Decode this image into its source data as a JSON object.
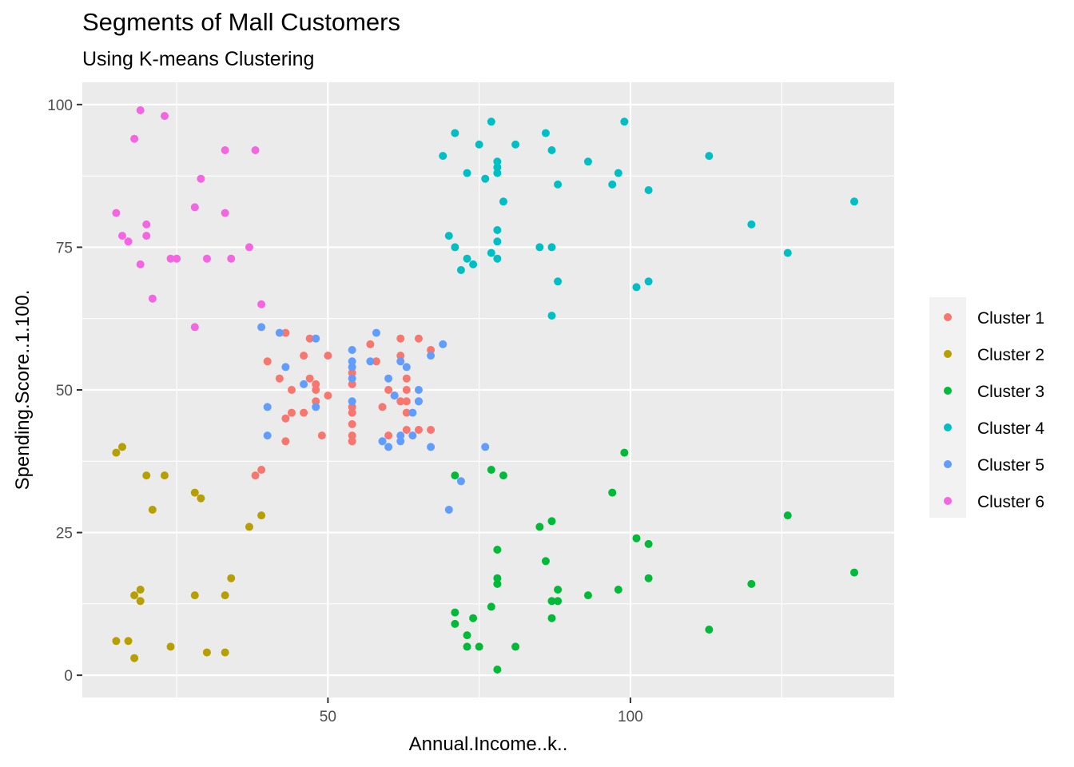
{
  "chart_data": {
    "type": "scatter",
    "title": "Segments of Mall Customers",
    "subtitle": "Using K-means Clustering",
    "xlabel": "Annual.Income..k..",
    "ylabel": "Spending.Score..1.100.",
    "xlim": [
      9.4,
      143.6
    ],
    "ylim": [
      -3.9,
      103.9
    ],
    "x_ticks": [
      50,
      100
    ],
    "y_ticks": [
      0,
      25,
      50,
      75,
      100
    ],
    "grid": true,
    "legend_position": "right",
    "series": [
      {
        "name": "Cluster 1",
        "color": "#F8766D",
        "points": [
          [
            38,
            35
          ],
          [
            39,
            36
          ],
          [
            40,
            55
          ],
          [
            42,
            52
          ],
          [
            43,
            60
          ],
          [
            43,
            45
          ],
          [
            43,
            41
          ],
          [
            44,
            50
          ],
          [
            44,
            46
          ],
          [
            46,
            56
          ],
          [
            46,
            46
          ],
          [
            47,
            59
          ],
          [
            47,
            52
          ],
          [
            48,
            51
          ],
          [
            48,
            50
          ],
          [
            48,
            48
          ],
          [
            49,
            42
          ],
          [
            50,
            56
          ],
          [
            50,
            49
          ],
          [
            54,
            53
          ],
          [
            54,
            51
          ],
          [
            54,
            47
          ],
          [
            54,
            46
          ],
          [
            54,
            44
          ],
          [
            54,
            42
          ],
          [
            54,
            41
          ],
          [
            57,
            58
          ],
          [
            58,
            55
          ],
          [
            59,
            47
          ],
          [
            60,
            50
          ],
          [
            60,
            42
          ],
          [
            61,
            49
          ],
          [
            62,
            59
          ],
          [
            62,
            56
          ],
          [
            62,
            48
          ],
          [
            63,
            52
          ],
          [
            63,
            50
          ],
          [
            63,
            48
          ],
          [
            63,
            46
          ],
          [
            63,
            43
          ],
          [
            65,
            59
          ],
          [
            65,
            48
          ],
          [
            65,
            43
          ],
          [
            67,
            57
          ],
          [
            67,
            43
          ]
        ]
      },
      {
        "name": "Cluster 2",
        "color": "#B79F00",
        "points": [
          [
            15,
            39
          ],
          [
            15,
            6
          ],
          [
            16,
            40
          ],
          [
            17,
            6
          ],
          [
            18,
            3
          ],
          [
            18,
            14
          ],
          [
            19,
            15
          ],
          [
            19,
            13
          ],
          [
            20,
            35
          ],
          [
            21,
            29
          ],
          [
            23,
            35
          ],
          [
            24,
            5
          ],
          [
            28,
            14
          ],
          [
            28,
            32
          ],
          [
            29,
            31
          ],
          [
            30,
            4
          ],
          [
            33,
            4
          ],
          [
            33,
            14
          ],
          [
            34,
            17
          ],
          [
            37,
            26
          ],
          [
            39,
            28
          ]
        ]
      },
      {
        "name": "Cluster 3",
        "color": "#00BA38",
        "points": [
          [
            71,
            35
          ],
          [
            71,
            11
          ],
          [
            71,
            9
          ],
          [
            73,
            7
          ],
          [
            73,
            5
          ],
          [
            74,
            10
          ],
          [
            75,
            5
          ],
          [
            77,
            36
          ],
          [
            77,
            12
          ],
          [
            78,
            22
          ],
          [
            78,
            17
          ],
          [
            78,
            16
          ],
          [
            78,
            1
          ],
          [
            79,
            35
          ],
          [
            81,
            5
          ],
          [
            85,
            26
          ],
          [
            86,
            20
          ],
          [
            87,
            27
          ],
          [
            87,
            13
          ],
          [
            87,
            10
          ],
          [
            88,
            15
          ],
          [
            88,
            13
          ],
          [
            93,
            14
          ],
          [
            97,
            32
          ],
          [
            98,
            15
          ],
          [
            99,
            39
          ],
          [
            101,
            24
          ],
          [
            103,
            23
          ],
          [
            103,
            17
          ],
          [
            113,
            8
          ],
          [
            120,
            16
          ],
          [
            126,
            28
          ],
          [
            137,
            18
          ]
        ]
      },
      {
        "name": "Cluster 4",
        "color": "#00BFC4",
        "points": [
          [
            69,
            91
          ],
          [
            70,
            77
          ],
          [
            71,
            95
          ],
          [
            71,
            75
          ],
          [
            72,
            71
          ],
          [
            73,
            88
          ],
          [
            73,
            73
          ],
          [
            74,
            72
          ],
          [
            75,
            93
          ],
          [
            76,
            87
          ],
          [
            77,
            97
          ],
          [
            77,
            74
          ],
          [
            78,
            90
          ],
          [
            78,
            89
          ],
          [
            78,
            88
          ],
          [
            78,
            78
          ],
          [
            78,
            76
          ],
          [
            78,
            73
          ],
          [
            79,
            83
          ],
          [
            81,
            93
          ],
          [
            85,
            75
          ],
          [
            86,
            95
          ],
          [
            87,
            92
          ],
          [
            87,
            75
          ],
          [
            87,
            63
          ],
          [
            88,
            86
          ],
          [
            88,
            69
          ],
          [
            93,
            90
          ],
          [
            97,
            86
          ],
          [
            98,
            88
          ],
          [
            99,
            97
          ],
          [
            101,
            68
          ],
          [
            103,
            85
          ],
          [
            103,
            69
          ],
          [
            113,
            91
          ],
          [
            120,
            79
          ],
          [
            126,
            74
          ],
          [
            137,
            83
          ]
        ]
      },
      {
        "name": "Cluster 5",
        "color": "#619CFF",
        "points": [
          [
            39,
            61
          ],
          [
            40,
            47
          ],
          [
            40,
            42
          ],
          [
            42,
            60
          ],
          [
            43,
            54
          ],
          [
            46,
            51
          ],
          [
            48,
            59
          ],
          [
            48,
            47
          ],
          [
            54,
            57
          ],
          [
            54,
            55
          ],
          [
            54,
            54
          ],
          [
            54,
            52
          ],
          [
            54,
            48
          ],
          [
            57,
            55
          ],
          [
            58,
            60
          ],
          [
            59,
            41
          ],
          [
            60,
            52
          ],
          [
            60,
            40
          ],
          [
            61,
            49
          ],
          [
            62,
            55
          ],
          [
            62,
            42
          ],
          [
            62,
            41
          ],
          [
            63,
            54
          ],
          [
            64,
            46
          ],
          [
            64,
            42
          ],
          [
            65,
            50
          ],
          [
            65,
            48
          ],
          [
            67,
            56
          ],
          [
            67,
            40
          ],
          [
            69,
            58
          ],
          [
            70,
            29
          ],
          [
            72,
            34
          ],
          [
            76,
            40
          ]
        ]
      },
      {
        "name": "Cluster 6",
        "color": "#F564E3",
        "points": [
          [
            15,
            81
          ],
          [
            16,
            77
          ],
          [
            17,
            76
          ],
          [
            18,
            94
          ],
          [
            19,
            99
          ],
          [
            19,
            72
          ],
          [
            20,
            77
          ],
          [
            20,
            79
          ],
          [
            21,
            66
          ],
          [
            23,
            98
          ],
          [
            24,
            73
          ],
          [
            25,
            73
          ],
          [
            28,
            82
          ],
          [
            28,
            61
          ],
          [
            29,
            87
          ],
          [
            30,
            73
          ],
          [
            33,
            92
          ],
          [
            33,
            81
          ],
          [
            34,
            73
          ],
          [
            37,
            75
          ],
          [
            38,
            92
          ],
          [
            39,
            65
          ]
        ]
      }
    ]
  }
}
